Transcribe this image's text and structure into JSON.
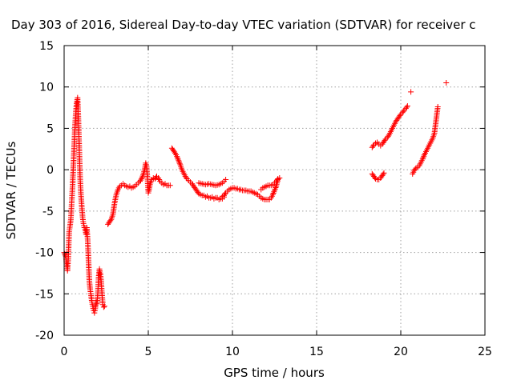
{
  "chart_data": {
    "type": "scatter",
    "title": "Day 303 of 2016, Sidereal Day-to-day VTEC variation (SDTVAR) for receiver c",
    "xlabel": "GPS time / hours",
    "ylabel": "SDTVAR / TECUs",
    "xlim": [
      0,
      25
    ],
    "ylim": [
      -20,
      15
    ],
    "xticks": [
      "0",
      "5",
      "10",
      "15",
      "20",
      "25"
    ],
    "yticks": [
      "-20",
      "-15",
      "-10",
      "-5",
      "0",
      "5",
      "10",
      "15"
    ],
    "grid": true,
    "marker": "plus",
    "color": "#ff0000",
    "segments": [
      [
        [
          0.0,
          -10.0
        ],
        [
          0.1,
          -10.5
        ],
        [
          0.15,
          -11.5
        ],
        [
          0.2,
          -12.2
        ],
        [
          0.25,
          -10.5
        ],
        [
          0.3,
          -7.5
        ],
        [
          0.35,
          -6.8
        ],
        [
          0.4,
          -6.0
        ],
        [
          0.45,
          -4.0
        ],
        [
          0.5,
          -2.0
        ],
        [
          0.55,
          0.5
        ],
        [
          0.6,
          3.0
        ],
        [
          0.65,
          5.5
        ],
        [
          0.7,
          7.0
        ],
        [
          0.75,
          8.2
        ],
        [
          0.8,
          8.7
        ],
        [
          0.85,
          6.0
        ],
        [
          0.9,
          2.5
        ],
        [
          0.95,
          -1.0
        ],
        [
          1.0,
          -3.0
        ],
        [
          1.05,
          -4.5
        ],
        [
          1.1,
          -5.8
        ],
        [
          1.15,
          -6.5
        ],
        [
          1.2,
          -7.0
        ],
        [
          1.25,
          -7.2
        ],
        [
          1.3,
          -7.8
        ],
        [
          1.35,
          -7.0
        ],
        [
          1.4,
          -8.5
        ],
        [
          1.45,
          -11.0
        ],
        [
          1.5,
          -13.5
        ],
        [
          1.55,
          -14.5
        ],
        [
          1.6,
          -15.2
        ],
        [
          1.65,
          -16.0
        ],
        [
          1.7,
          -16.5
        ],
        [
          1.75,
          -17.0
        ],
        [
          1.8,
          -17.3
        ],
        [
          1.85,
          -16.8
        ],
        [
          1.9,
          -16.0
        ],
        [
          1.95,
          -16.2
        ],
        [
          2.0,
          -15.0
        ],
        [
          2.05,
          -13.0
        ],
        [
          2.1,
          -12.0
        ],
        [
          2.15,
          -12.5
        ],
        [
          2.2,
          -13.5
        ],
        [
          2.25,
          -15.0
        ],
        [
          2.3,
          -16.3
        ],
        [
          2.35,
          -16.6
        ],
        [
          2.4,
          -16.5
        ]
      ],
      [
        [
          2.6,
          -6.6
        ],
        [
          2.7,
          -6.3
        ],
        [
          2.8,
          -6.0
        ],
        [
          2.9,
          -5.4
        ],
        [
          3.0,
          -4.0
        ],
        [
          3.1,
          -3.0
        ],
        [
          3.2,
          -2.4
        ],
        [
          3.3,
          -2.0
        ],
        [
          3.4,
          -1.9
        ],
        [
          3.5,
          -1.7
        ],
        [
          3.6,
          -1.9
        ],
        [
          3.7,
          -2.0
        ],
        [
          3.8,
          -2.1
        ],
        [
          3.9,
          -2.0
        ],
        [
          4.0,
          -2.2
        ],
        [
          4.1,
          -2.1
        ],
        [
          4.2,
          -2.0
        ],
        [
          4.3,
          -1.8
        ],
        [
          4.4,
          -1.6
        ],
        [
          4.5,
          -1.4
        ],
        [
          4.6,
          -1.1
        ],
        [
          4.7,
          -0.6
        ],
        [
          4.8,
          0.2
        ],
        [
          4.85,
          0.8
        ],
        [
          4.9,
          0.4
        ],
        [
          4.95,
          -1.0
        ],
        [
          5.0,
          -2.8
        ],
        [
          5.05,
          -2.4
        ],
        [
          5.1,
          -1.8
        ],
        [
          5.2,
          -1.2
        ],
        [
          5.3,
          -1.0
        ],
        [
          5.4,
          -1.1
        ],
        [
          5.5,
          -0.8
        ],
        [
          5.6,
          -1.0
        ],
        [
          5.7,
          -1.4
        ],
        [
          5.8,
          -1.6
        ],
        [
          5.9,
          -1.8
        ],
        [
          6.0,
          -1.7
        ],
        [
          6.1,
          -1.9
        ],
        [
          6.2,
          -1.9
        ],
        [
          6.3,
          -1.9
        ]
      ],
      [
        [
          6.4,
          2.6
        ],
        [
          6.5,
          2.3
        ],
        [
          6.6,
          2.0
        ],
        [
          6.7,
          1.6
        ],
        [
          6.8,
          1.1
        ],
        [
          6.9,
          0.6
        ],
        [
          7.0,
          0.0
        ],
        [
          7.1,
          -0.4
        ],
        [
          7.2,
          -0.8
        ],
        [
          7.3,
          -1.1
        ],
        [
          7.4,
          -1.3
        ],
        [
          7.5,
          -1.5
        ],
        [
          7.6,
          -1.7
        ],
        [
          7.7,
          -2.0
        ],
        [
          7.8,
          -2.3
        ],
        [
          7.9,
          -2.6
        ],
        [
          8.0,
          -2.9
        ],
        [
          8.1,
          -3.0
        ],
        [
          8.2,
          -3.1
        ],
        [
          8.3,
          -3.1
        ],
        [
          8.4,
          -3.3
        ],
        [
          8.5,
          -3.2
        ],
        [
          8.6,
          -3.4
        ],
        [
          8.7,
          -3.4
        ],
        [
          8.8,
          -3.3
        ],
        [
          8.9,
          -3.5
        ],
        [
          9.0,
          -3.4
        ],
        [
          9.1,
          -3.4
        ],
        [
          9.2,
          -3.6
        ],
        [
          9.3,
          -3.5
        ],
        [
          9.4,
          -3.5
        ],
        [
          9.5,
          -3.3
        ]
      ],
      [
        [
          8.0,
          -1.6
        ],
        [
          8.2,
          -1.7
        ],
        [
          8.4,
          -1.8
        ],
        [
          8.6,
          -1.7
        ],
        [
          8.8,
          -1.8
        ],
        [
          9.0,
          -1.9
        ],
        [
          9.2,
          -1.8
        ],
        [
          9.4,
          -1.6
        ],
        [
          9.5,
          -1.4
        ],
        [
          9.6,
          -1.2
        ]
      ],
      [
        [
          9.4,
          -3.2
        ],
        [
          9.5,
          -3.1
        ],
        [
          9.6,
          -2.8
        ],
        [
          9.7,
          -2.6
        ],
        [
          9.8,
          -2.4
        ],
        [
          9.9,
          -2.3
        ],
        [
          10.0,
          -2.2
        ],
        [
          10.1,
          -2.2
        ],
        [
          10.2,
          -2.3
        ],
        [
          10.3,
          -2.3
        ],
        [
          10.4,
          -2.4
        ],
        [
          10.5,
          -2.4
        ],
        [
          10.6,
          -2.5
        ],
        [
          10.7,
          -2.5
        ],
        [
          10.8,
          -2.5
        ],
        [
          10.9,
          -2.6
        ],
        [
          11.0,
          -2.6
        ],
        [
          11.1,
          -2.6
        ],
        [
          11.2,
          -2.7
        ],
        [
          11.3,
          -2.8
        ],
        [
          11.4,
          -2.9
        ],
        [
          11.5,
          -3.0
        ],
        [
          11.6,
          -3.2
        ],
        [
          11.7,
          -3.4
        ],
        [
          11.8,
          -3.5
        ],
        [
          11.9,
          -3.6
        ],
        [
          12.0,
          -3.6
        ],
        [
          12.1,
          -3.6
        ],
        [
          12.2,
          -3.6
        ],
        [
          12.3,
          -3.4
        ],
        [
          12.4,
          -3.0
        ],
        [
          12.5,
          -2.5
        ],
        [
          12.6,
          -2.0
        ],
        [
          12.7,
          -1.2
        ]
      ],
      [
        [
          11.7,
          -2.4
        ],
        [
          11.8,
          -2.2
        ],
        [
          11.9,
          -2.1
        ],
        [
          12.0,
          -2.0
        ],
        [
          12.1,
          -1.9
        ],
        [
          12.2,
          -1.9
        ],
        [
          12.3,
          -1.9
        ],
        [
          12.4,
          -1.8
        ],
        [
          12.5,
          -1.6
        ],
        [
          12.6,
          -1.4
        ],
        [
          12.7,
          -1.1
        ],
        [
          12.8,
          -1.0
        ]
      ],
      [
        [
          18.3,
          -0.5
        ],
        [
          18.4,
          -0.8
        ],
        [
          18.5,
          -1.1
        ],
        [
          18.6,
          -1.2
        ],
        [
          18.7,
          -1.2
        ],
        [
          18.8,
          -1.0
        ],
        [
          18.9,
          -0.7
        ],
        [
          19.0,
          -0.4
        ]
      ],
      [
        [
          18.3,
          2.7
        ],
        [
          18.4,
          3.0
        ],
        [
          18.5,
          3.2
        ],
        [
          18.6,
          3.3
        ],
        [
          18.7,
          3.1
        ],
        [
          18.8,
          2.9
        ],
        [
          18.9,
          3.1
        ],
        [
          19.0,
          3.4
        ],
        [
          19.1,
          3.7
        ],
        [
          19.2,
          3.9
        ],
        [
          19.3,
          4.2
        ],
        [
          19.4,
          4.6
        ],
        [
          19.5,
          5.0
        ],
        [
          19.6,
          5.4
        ],
        [
          19.7,
          5.8
        ],
        [
          19.8,
          6.1
        ],
        [
          19.9,
          6.4
        ],
        [
          20.0,
          6.7
        ],
        [
          20.1,
          6.9
        ],
        [
          20.2,
          7.2
        ],
        [
          20.3,
          7.4
        ],
        [
          20.4,
          7.7
        ]
      ],
      [
        [
          20.6,
          9.4
        ]
      ],
      [
        [
          20.7,
          -0.5
        ],
        [
          20.8,
          -0.1
        ],
        [
          20.9,
          0.2
        ],
        [
          21.0,
          0.3
        ],
        [
          21.1,
          0.5
        ],
        [
          21.2,
          0.9
        ],
        [
          21.3,
          1.3
        ],
        [
          21.4,
          1.8
        ],
        [
          21.5,
          2.2
        ],
        [
          21.6,
          2.6
        ],
        [
          21.7,
          3.0
        ],
        [
          21.8,
          3.4
        ],
        [
          21.9,
          3.8
        ],
        [
          22.0,
          4.4
        ],
        [
          22.05,
          5.2
        ],
        [
          22.1,
          6.0
        ],
        [
          22.15,
          6.8
        ],
        [
          22.2,
          7.6
        ]
      ],
      [
        [
          22.7,
          10.5
        ]
      ]
    ]
  }
}
